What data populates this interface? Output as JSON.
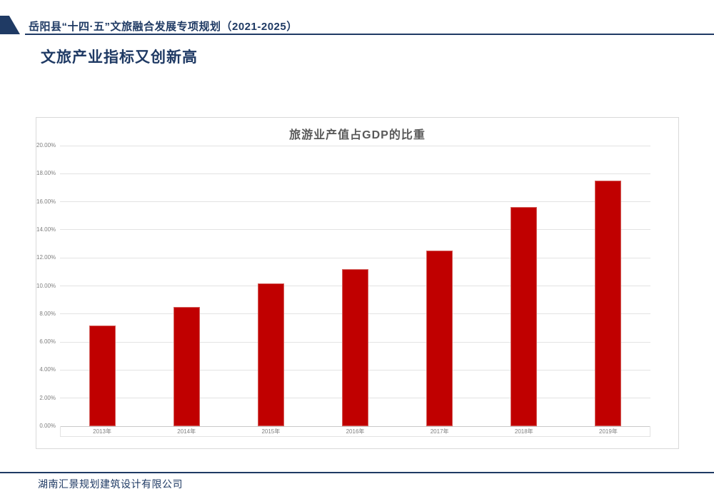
{
  "header": {
    "title": "岳阳县“十四·五”文旅融合发展专项规划（2021-2025）"
  },
  "page": {
    "title": "文旅产业指标又创新高"
  },
  "footer": {
    "company": "湖南汇景规划建筑设计有限公司"
  },
  "colors": {
    "navy_accent": "#1f3a64",
    "bar_red": "#c00000",
    "chart_border": "#d9d9d9",
    "gridline": "#e3e3e3",
    "axis_text": "#7f7f7f",
    "chart_title_text": "#595959"
  },
  "chart_data": {
    "type": "bar",
    "title": "旅游业产值占GDP的比重",
    "categories": [
      "2013年",
      "2014年",
      "2015年",
      "2016年",
      "2017年",
      "2018年",
      "2019年"
    ],
    "values": [
      7.2,
      8.5,
      10.2,
      11.2,
      12.5,
      15.6,
      17.5
    ],
    "unit": "%",
    "xlabel": "",
    "ylabel": "",
    "ylim": [
      0,
      20
    ],
    "ytick_step": 2,
    "ytick_format": "two-decimal-percent",
    "bar_color": "#c00000",
    "grid": true,
    "legend": "none"
  }
}
